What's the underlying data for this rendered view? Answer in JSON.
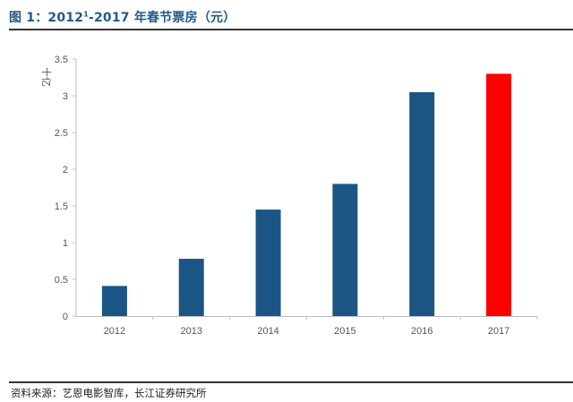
{
  "header": {
    "title_prefix": "图 1：2012",
    "title_sup": "1",
    "title_suffix": "-2017 年春节票房（元）"
  },
  "footer": {
    "source": "资料来源：艺恩电影智库，长江证券研究所"
  },
  "chart_data": {
    "type": "bar",
    "categories": [
      "2012",
      "2013",
      "2014",
      "2015",
      "2016",
      "2017"
    ],
    "values": [
      0.41,
      0.78,
      1.45,
      1.8,
      3.05,
      3.3
    ],
    "bar_colors": [
      "#1b5585",
      "#1b5585",
      "#1b5585",
      "#1b5585",
      "#1b5585",
      "#ff0000"
    ],
    "ylabel": "十亿",
    "ylim": [
      0,
      3.5
    ],
    "yticks": [
      0,
      0.5,
      1,
      1.5,
      2,
      2.5,
      3,
      3.5
    ],
    "ytick_labels": [
      "0",
      "0.5",
      "1",
      "1.5",
      "2",
      "2.5",
      "3",
      "3.5"
    ],
    "grid": false
  }
}
